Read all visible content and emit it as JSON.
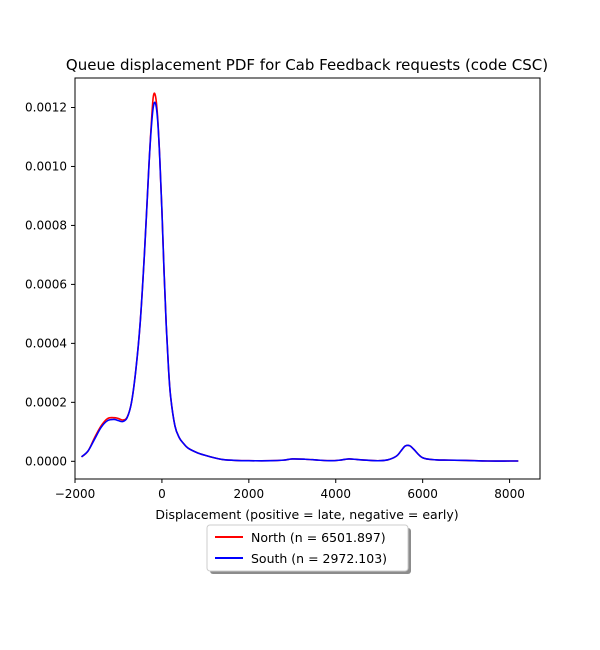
{
  "chart_data": {
    "type": "line",
    "title": "Queue displacement PDF for Cab Feedback  requests (code CSC)",
    "xlabel": "Displacement (positive = late, negative = early)",
    "ylabel": "",
    "xlim": [
      -2000,
      8700
    ],
    "ylim": [
      -6e-05,
      0.0013
    ],
    "xticks": [
      -2000,
      0,
      2000,
      4000,
      6000,
      8000
    ],
    "xtick_labels": [
      "−2000",
      "0",
      "2000",
      "4000",
      "6000",
      "8000"
    ],
    "yticks": [
      0.0,
      0.0002,
      0.0004,
      0.0006,
      0.0008,
      0.001,
      0.0012
    ],
    "ytick_labels": [
      "0.0000",
      "0.0002",
      "0.0004",
      "0.0006",
      "0.0008",
      "0.0010",
      "0.0012"
    ],
    "grid": false,
    "legend_position": "below",
    "series": [
      {
        "name": "North (n = 6501.897)",
        "color": "#ff0000",
        "x": [
          -1850,
          -1700,
          -1550,
          -1400,
          -1250,
          -1100,
          -1000,
          -900,
          -800,
          -700,
          -600,
          -500,
          -400,
          -300,
          -250,
          -200,
          -150,
          -100,
          -50,
          0,
          50,
          100,
          150,
          200,
          300,
          400,
          500,
          600,
          800,
          1000,
          1200,
          1400,
          1700,
          2000,
          2500,
          2800,
          3000,
          3300,
          3600,
          3900,
          4100,
          4300,
          4500,
          4800,
          5000,
          5200,
          5400,
          5500,
          5600,
          5700,
          5800,
          6000,
          6300,
          6600,
          7000,
          7500,
          8000,
          8200
        ],
        "y": [
          1.5e-05,
          3.5e-05,
          8e-05,
          0.00012,
          0.000145,
          0.000148,
          0.000145,
          0.00014,
          0.00015,
          0.0002,
          0.00031,
          0.00047,
          0.00071,
          0.001,
          0.00113,
          0.001235,
          0.00124,
          0.00117,
          0.00103,
          0.00085,
          0.00064,
          0.00046,
          0.00032,
          0.00022,
          0.00012,
          8e-05,
          6e-05,
          4.5e-05,
          3e-05,
          2e-05,
          1.2e-05,
          6e-06,
          3e-06,
          2e-06,
          2e-06,
          4e-06,
          8e-06,
          7e-06,
          4e-06,
          2e-06,
          4e-06,
          8e-06,
          6e-06,
          3e-06,
          2e-06,
          5e-06,
          1.8e-05,
          3.5e-05,
          5.2e-05,
          5.3e-05,
          4e-05,
          1.2e-05,
          5e-06,
          4e-06,
          3e-06,
          1e-06,
          1e-06,
          1e-06
        ]
      },
      {
        "name": "South (n = 2972.103)",
        "color": "#0000ff",
        "x": [
          -1850,
          -1700,
          -1550,
          -1400,
          -1250,
          -1100,
          -1000,
          -900,
          -800,
          -700,
          -600,
          -500,
          -400,
          -300,
          -250,
          -200,
          -150,
          -100,
          -50,
          0,
          50,
          100,
          150,
          200,
          300,
          400,
          500,
          600,
          800,
          1000,
          1200,
          1400,
          1700,
          2000,
          2500,
          2800,
          3000,
          3300,
          3600,
          3900,
          4100,
          4300,
          4500,
          4800,
          5000,
          5200,
          5400,
          5500,
          5600,
          5700,
          5800,
          6000,
          6300,
          6600,
          7000,
          7500,
          8000,
          8200
        ],
        "y": [
          1.5e-05,
          3.5e-05,
          7.5e-05,
          0.000115,
          0.000138,
          0.000142,
          0.000138,
          0.000135,
          0.000148,
          0.0002,
          0.00031,
          0.00047,
          0.00071,
          0.001,
          0.00112,
          0.0012,
          0.001215,
          0.00116,
          0.00103,
          0.00085,
          0.00064,
          0.00046,
          0.00032,
          0.00022,
          0.00012,
          8e-05,
          6e-05,
          4.5e-05,
          3e-05,
          2e-05,
          1.2e-05,
          6e-06,
          3e-06,
          2e-06,
          2e-06,
          4e-06,
          8e-06,
          7e-06,
          4e-06,
          2e-06,
          4e-06,
          8e-06,
          6e-06,
          3e-06,
          2e-06,
          5e-06,
          1.8e-05,
          3.5e-05,
          5.2e-05,
          5.3e-05,
          4e-05,
          1.2e-05,
          5e-06,
          4e-06,
          3e-06,
          1e-06,
          1e-06,
          1e-06
        ]
      }
    ]
  }
}
